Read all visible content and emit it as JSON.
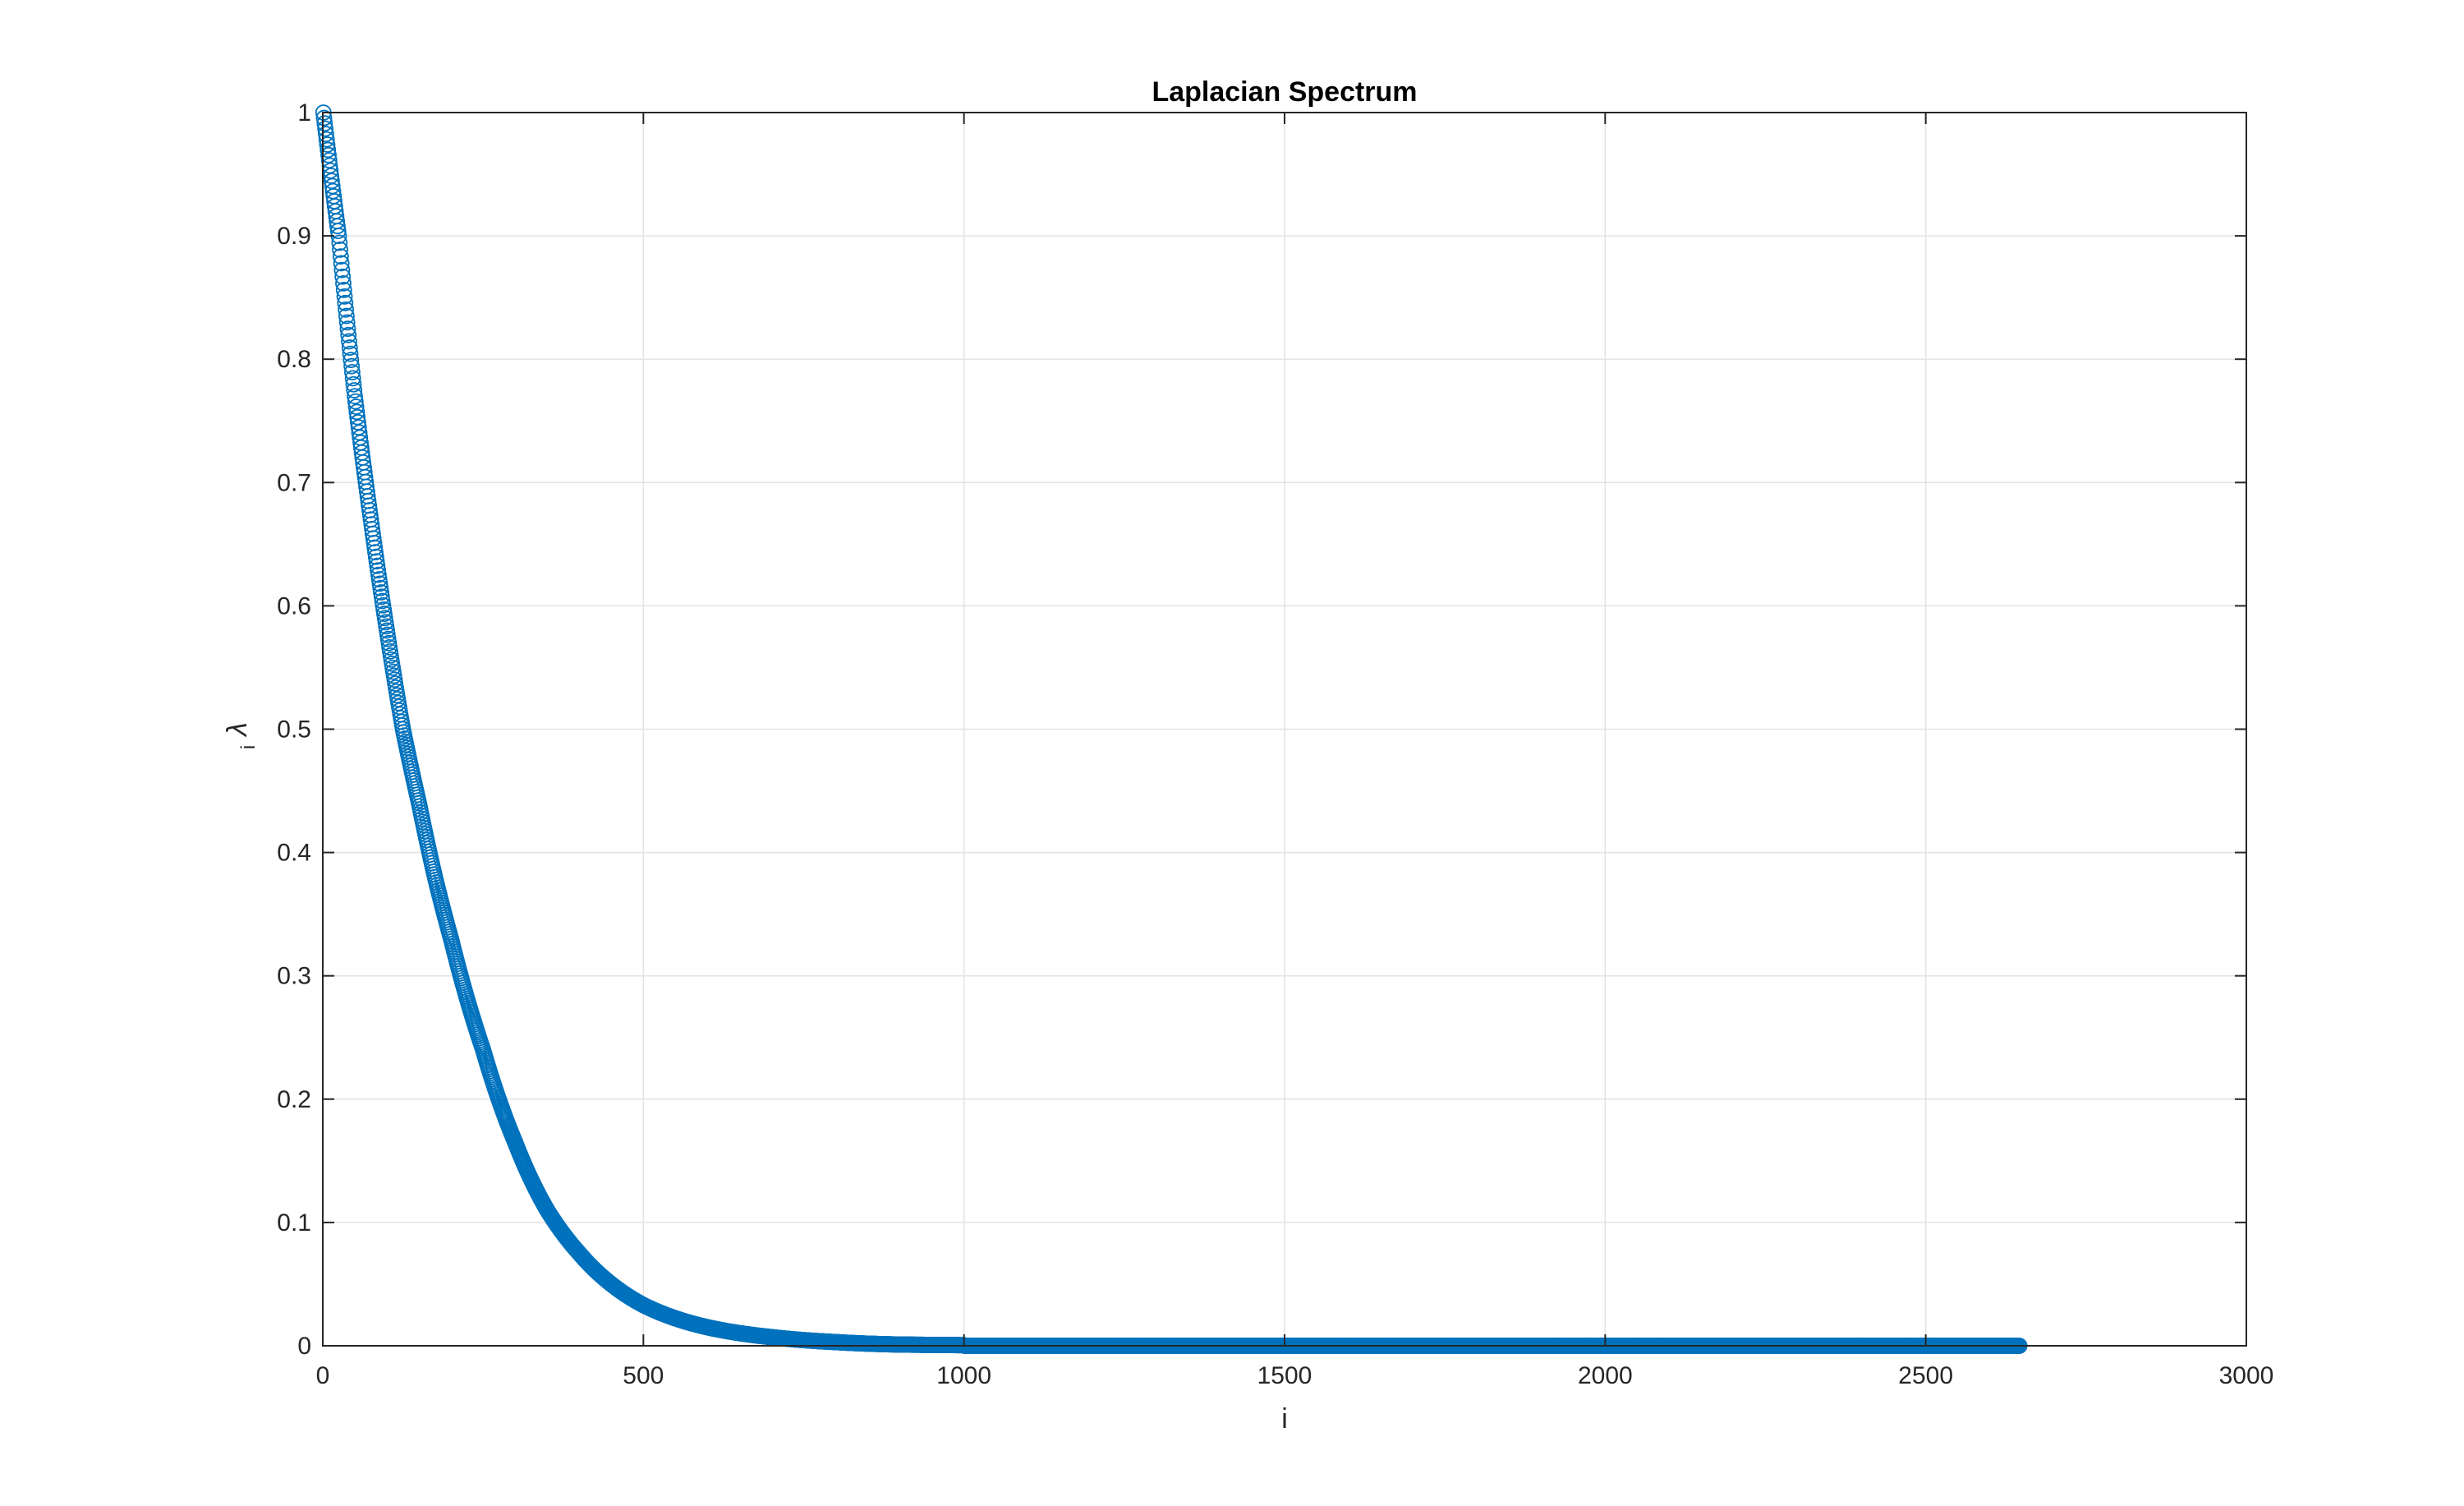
{
  "chart_data": {
    "type": "scatter",
    "title": "Laplacian Spectrum",
    "xlabel": "i",
    "ylabel_main": "λ",
    "ylabel_sub": "i",
    "xlim": [
      0,
      3000
    ],
    "ylim": [
      0,
      1
    ],
    "xticks": [
      0,
      500,
      1000,
      1500,
      2000,
      2500,
      3000
    ],
    "yticks": [
      0,
      0.1,
      0.2,
      0.3,
      0.4,
      0.5,
      0.6,
      0.7,
      0.8,
      0.9,
      1
    ],
    "grid": true,
    "marker": "circle",
    "series_color": "#0072BD",
    "series": [
      {
        "n_points": 2646,
        "x": [
          1,
          25,
          50,
          75,
          100,
          125,
          150,
          175,
          200,
          250,
          300,
          350,
          400,
          450,
          500,
          600,
          700,
          800,
          900,
          1000,
          1200,
          1500,
          2000,
          2646
        ],
        "y": [
          1.0,
          0.9,
          0.77,
          0.67,
          0.58,
          0.5,
          0.44,
          0.38,
          0.33,
          0.24,
          0.165,
          0.11,
          0.075,
          0.05,
          0.033,
          0.015,
          0.007,
          0.003,
          0.001,
          0.0005,
          0.0002,
          0.0001,
          0.0,
          0.0
        ]
      }
    ]
  }
}
